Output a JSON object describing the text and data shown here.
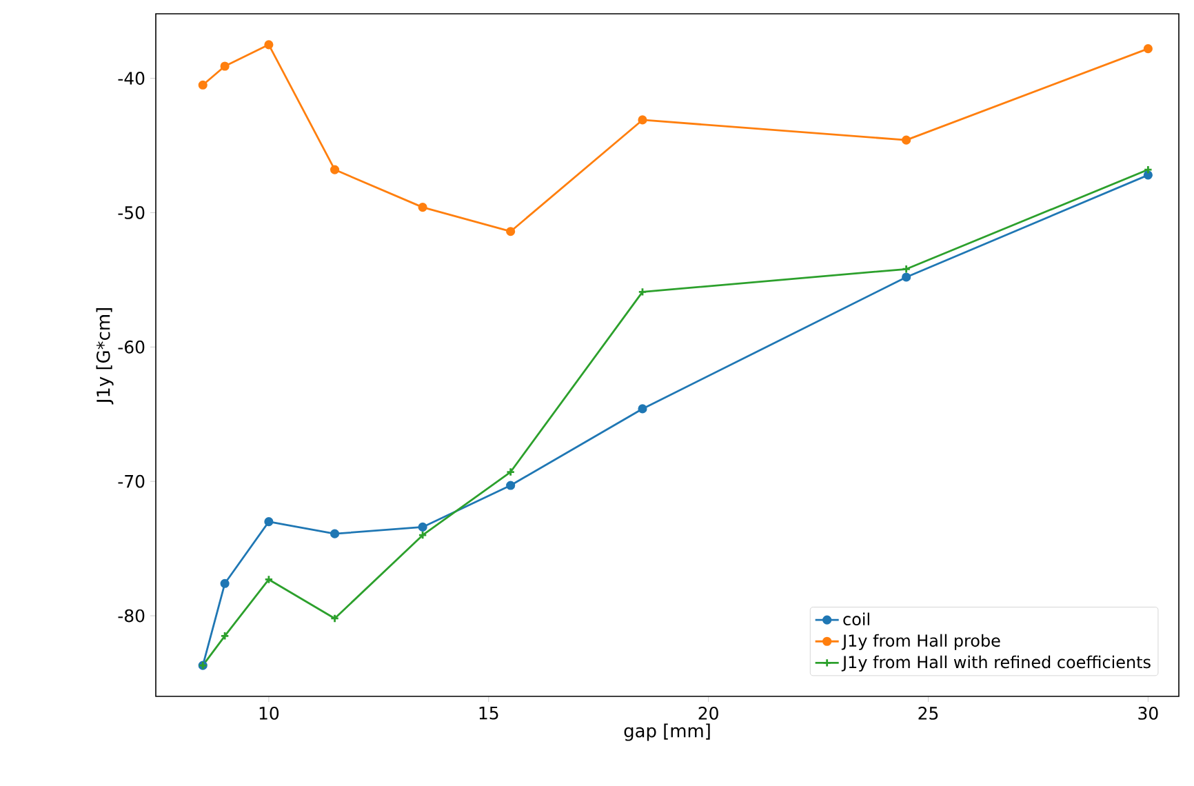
{
  "chart_data": {
    "type": "line",
    "xlabel": "gap [mm]",
    "ylabel": "J1y [G*cm]",
    "x": [
      8.5,
      9,
      10,
      11.5,
      13.5,
      15.5,
      18.5,
      24.5,
      30
    ],
    "series": [
      {
        "name": "coil",
        "color": "#1f77b4",
        "marker": "circle",
        "values": [
          -83.7,
          -77.6,
          -73.0,
          -73.9,
          -73.4,
          -70.3,
          -64.6,
          -54.8,
          -47.2
        ]
      },
      {
        "name": "J1y from Hall probe",
        "color": "#ff7f0e",
        "marker": "circle",
        "values": [
          -40.5,
          -39.1,
          -37.5,
          -46.8,
          -49.6,
          -51.4,
          -43.1,
          -44.6,
          -37.8
        ]
      },
      {
        "name": "J1y from Hall with refined coefficients",
        "color": "#2ca02c",
        "marker": "cross",
        "values": [
          -83.7,
          -81.5,
          -77.3,
          -80.2,
          -74.0,
          -69.3,
          -55.9,
          -54.2,
          -46.8
        ]
      }
    ],
    "xlim": [
      7.43,
      30.7
    ],
    "ylim": [
      -86,
      -35.2
    ],
    "xticks": [
      10,
      15,
      20,
      25,
      30
    ],
    "yticks": [
      -80,
      -70,
      -60,
      -50,
      -40
    ],
    "grid": false,
    "legend": "bottom right",
    "line_style": "solid"
  }
}
